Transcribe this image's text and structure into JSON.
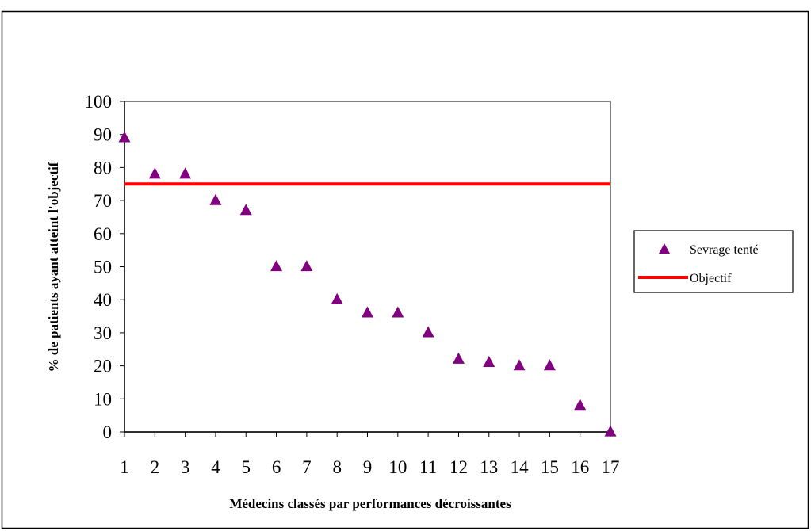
{
  "chart_data": {
    "type": "scatter",
    "title": "",
    "xlabel": "Médecins classés par performances décroissantes",
    "ylabel": "% de patients ayant atteint l'objectif",
    "categories": [
      "1",
      "2",
      "3",
      "4",
      "5",
      "6",
      "7",
      "8",
      "9",
      "10",
      "11",
      "12",
      "13",
      "14",
      "15",
      "16",
      "17"
    ],
    "ylim": [
      0,
      100
    ],
    "yticks": [
      "0",
      "10",
      "20",
      "30",
      "40",
      "50",
      "60",
      "70",
      "80",
      "90",
      "100"
    ],
    "grid": false,
    "legend_position": "right",
    "series": [
      {
        "name": "Sevrage tenté",
        "type": "scatter",
        "marker": "triangle",
        "color": "#800080",
        "values": [
          89,
          78,
          78,
          70,
          67,
          50,
          50,
          40,
          36,
          36,
          30,
          22,
          21,
          20,
          20,
          8,
          0
        ]
      },
      {
        "name": "Objectif",
        "type": "line",
        "color": "#ff0000",
        "value": 75
      }
    ]
  }
}
